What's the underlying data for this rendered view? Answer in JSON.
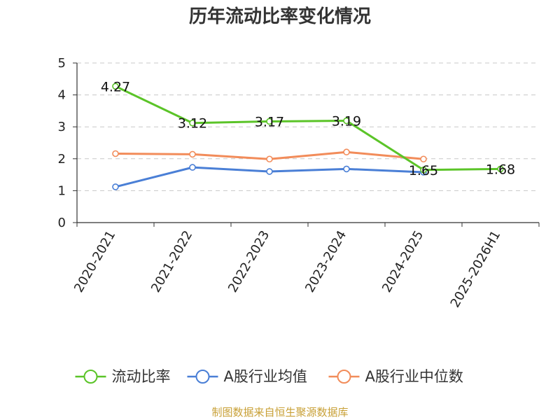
{
  "chart_data": {
    "type": "line",
    "title": "历年流动比率变化情况",
    "categories": [
      "2020-2021",
      "2021-2022",
      "2022-2023",
      "2023-2024",
      "2024-2025",
      "2025-2026H1"
    ],
    "series": [
      {
        "name": "流动比率",
        "color": "#5bc428",
        "values": [
          4.27,
          3.12,
          3.17,
          3.19,
          1.65,
          1.68
        ],
        "labels": [
          "4.27",
          "3.12",
          "3.17",
          "3.19",
          "1.65",
          "1.68"
        ]
      },
      {
        "name": "A股行业均值",
        "color": "#4a7fd6",
        "values": [
          1.12,
          1.73,
          1.6,
          1.68,
          1.58,
          null
        ]
      },
      {
        "name": "A股行业中位数",
        "color": "#f28c5a",
        "values": [
          2.16,
          2.14,
          1.99,
          2.21,
          1.99,
          null
        ]
      }
    ],
    "ylim": [
      0,
      5
    ],
    "yticks": [
      "0",
      "1",
      "2",
      "3",
      "4",
      "5"
    ],
    "grid": true,
    "legend_position": "bottom"
  },
  "source_text": "制图数据来自恒生聚源数据库",
  "source_color": "#c8a036"
}
